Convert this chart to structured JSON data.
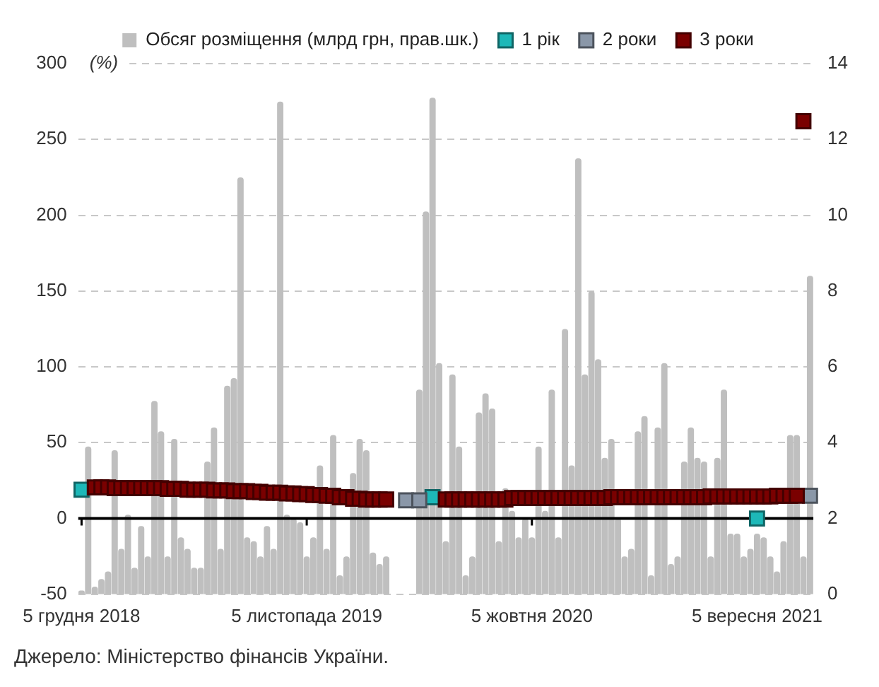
{
  "chart_data": {
    "type": "bar",
    "ylabel": "(%)",
    "categories": [
      "5 грудня 2018",
      null,
      null,
      null,
      null,
      null,
      null,
      null,
      null,
      null,
      null,
      null,
      null,
      null,
      null,
      null,
      null,
      null,
      null,
      null,
      null,
      null,
      null,
      null,
      null,
      null,
      null,
      null,
      null,
      null,
      null,
      null,
      null,
      null,
      "5 листопада 2019",
      null,
      null,
      null,
      null,
      null,
      null,
      null,
      null,
      null,
      null,
      null,
      null,
      null,
      null,
      null,
      null,
      null,
      null,
      null,
      null,
      null,
      null,
      null,
      null,
      null,
      null,
      null,
      null,
      null,
      null,
      null,
      null,
      null,
      "5 жовтня 2020",
      null,
      null,
      null,
      null,
      null,
      null,
      null,
      null,
      null,
      null,
      null,
      null,
      null,
      null,
      null,
      null,
      null,
      null,
      null,
      null,
      null,
      null,
      null,
      null,
      null,
      null,
      null,
      null,
      null,
      null,
      null,
      null,
      null,
      "5 вересня 2021",
      null,
      null,
      null,
      null,
      null,
      null,
      null,
      null
    ],
    "series": [
      {
        "name": "Обсяг розміщення (млрд грн, прав.шк.)",
        "axis": "y2",
        "color": "#bfbfbf",
        "values": [
          0.1,
          3.9,
          0.2,
          0.4,
          0.6,
          3.8,
          1.2,
          2.1,
          0.7,
          1.8,
          1.0,
          5.1,
          4.3,
          1.0,
          4.1,
          1.5,
          1.2,
          0.7,
          0.7,
          3.5,
          4.4,
          1.2,
          5.5,
          5.7,
          11.0,
          1.5,
          1.4,
          1.0,
          1.8,
          1.2,
          13.0,
          2.1,
          2.0,
          1.9,
          1.0,
          1.5,
          3.4,
          1.2,
          4.2,
          0.5,
          1.0,
          3.2,
          4.1,
          3.8,
          1.1,
          0.8,
          1.0,
          null,
          null,
          null,
          null,
          5.4,
          10.1,
          13.1,
          6.1,
          1.4,
          5.8,
          3.9,
          0.5,
          1.0,
          4.8,
          5.3,
          4.9,
          1.4,
          2.8,
          2.2,
          1.5,
          2.0,
          1.5,
          3.9,
          2.2,
          5.4,
          1.5,
          7.0,
          3.4,
          11.5,
          5.8,
          8.0,
          6.2,
          3.6,
          4.1,
          2.0,
          1.0,
          1.2,
          4.3,
          4.7,
          0.5,
          4.4,
          6.1,
          0.8,
          1.0,
          3.5,
          4.4,
          3.6,
          3.5,
          1.0,
          3.6,
          5.4,
          1.6,
          1.6,
          1.0,
          1.2,
          1.6,
          1.5,
          1.0,
          0.6,
          1.4,
          4.2,
          4.2,
          1.0,
          8.4
        ]
      },
      {
        "name": "1 рік",
        "type": "scatter",
        "color": "#1db8b8",
        "values": [
          19,
          null,
          null,
          null,
          null,
          null,
          null,
          null,
          null,
          null,
          null,
          null,
          null,
          null,
          null,
          null,
          null,
          null,
          null,
          null,
          null,
          null,
          null,
          null,
          null,
          null,
          null,
          null,
          null,
          null,
          null,
          null,
          null,
          null,
          null,
          null,
          null,
          null,
          null,
          null,
          null,
          null,
          null,
          null,
          null,
          null,
          null,
          null,
          null,
          null,
          null,
          null,
          null,
          14,
          null,
          null,
          null,
          null,
          null,
          null,
          null,
          null,
          null,
          null,
          null,
          null,
          null,
          null,
          null,
          null,
          null,
          null,
          null,
          null,
          null,
          null,
          null,
          null,
          null,
          null,
          null,
          null,
          null,
          null,
          null,
          null,
          null,
          null,
          null,
          null,
          null,
          null,
          null,
          null,
          null,
          null,
          null,
          null,
          null,
          null,
          null,
          null,
          0,
          null,
          null,
          null,
          null,
          null,
          null,
          null,
          null
        ]
      },
      {
        "name": "2 роки",
        "type": "scatter",
        "color": "#8a97a8",
        "values": [
          null,
          null,
          null,
          null,
          null,
          null,
          null,
          null,
          null,
          null,
          null,
          null,
          null,
          null,
          null,
          null,
          null,
          null,
          null,
          null,
          null,
          null,
          null,
          null,
          null,
          null,
          null,
          null,
          null,
          null,
          null,
          null,
          null,
          null,
          null,
          null,
          null,
          null,
          null,
          null,
          null,
          null,
          null,
          null,
          null,
          null,
          null,
          null,
          null,
          12,
          null,
          12,
          null,
          null,
          null,
          null,
          null,
          null,
          null,
          null,
          null,
          null,
          null,
          null,
          null,
          null,
          null,
          null,
          null,
          null,
          null,
          null,
          null,
          null,
          null,
          null,
          null,
          null,
          null,
          null,
          null,
          null,
          null,
          null,
          null,
          null,
          null,
          null,
          null,
          null,
          null,
          null,
          null,
          null,
          null,
          null,
          null,
          null,
          null,
          null,
          null,
          null,
          null,
          null,
          null,
          null,
          null,
          null,
          null,
          null,
          15
        ]
      },
      {
        "name": "3 роки",
        "type": "scatter",
        "color": "#7a0000",
        "values": [
          null,
          null,
          20.5,
          20.5,
          20.5,
          20,
          20,
          20,
          20,
          20,
          20,
          20,
          20,
          19.5,
          19.5,
          19.5,
          19,
          19,
          19,
          19,
          18.5,
          18.5,
          18.5,
          18,
          18,
          18,
          17.5,
          17.5,
          17,
          17,
          17,
          16.5,
          16.5,
          16,
          16,
          15.5,
          15.5,
          15,
          15,
          14,
          14,
          13,
          13,
          12.5,
          12.5,
          12.5,
          12.5,
          null,
          null,
          null,
          null,
          null,
          null,
          null,
          null,
          12.5,
          12.5,
          12.5,
          12.5,
          12.5,
          12.5,
          12.5,
          12.5,
          12.5,
          12.5,
          13.5,
          13.5,
          13.5,
          13.5,
          13.5,
          13.5,
          13.5,
          13.5,
          13.5,
          13.5,
          13.5,
          13.5,
          13.5,
          13.5,
          13.5,
          14,
          14,
          14,
          14,
          14,
          14,
          14,
          14,
          14,
          14,
          14,
          14,
          14,
          14,
          14,
          14.5,
          14.5,
          14.5,
          14.5,
          14.5,
          14.5,
          14.5,
          14.5,
          14.5,
          14.5,
          15,
          15,
          15,
          15,
          262,
          null
        ]
      }
    ],
    "ylim": [
      -50,
      300
    ],
    "yticks": [
      -50,
      0,
      50,
      100,
      150,
      200,
      250,
      300
    ],
    "y2lim": [
      0,
      14
    ],
    "y2ticks": [
      0,
      2,
      4,
      6,
      8,
      10,
      12,
      14
    ],
    "grid": "y",
    "legend": "top",
    "marker": "square",
    "ref_lines": [
      {
        "axis": "y",
        "value": 0,
        "color": "#000000"
      }
    ],
    "annotations": [
      "Джерело: Міністерство фінансів України."
    ]
  }
}
